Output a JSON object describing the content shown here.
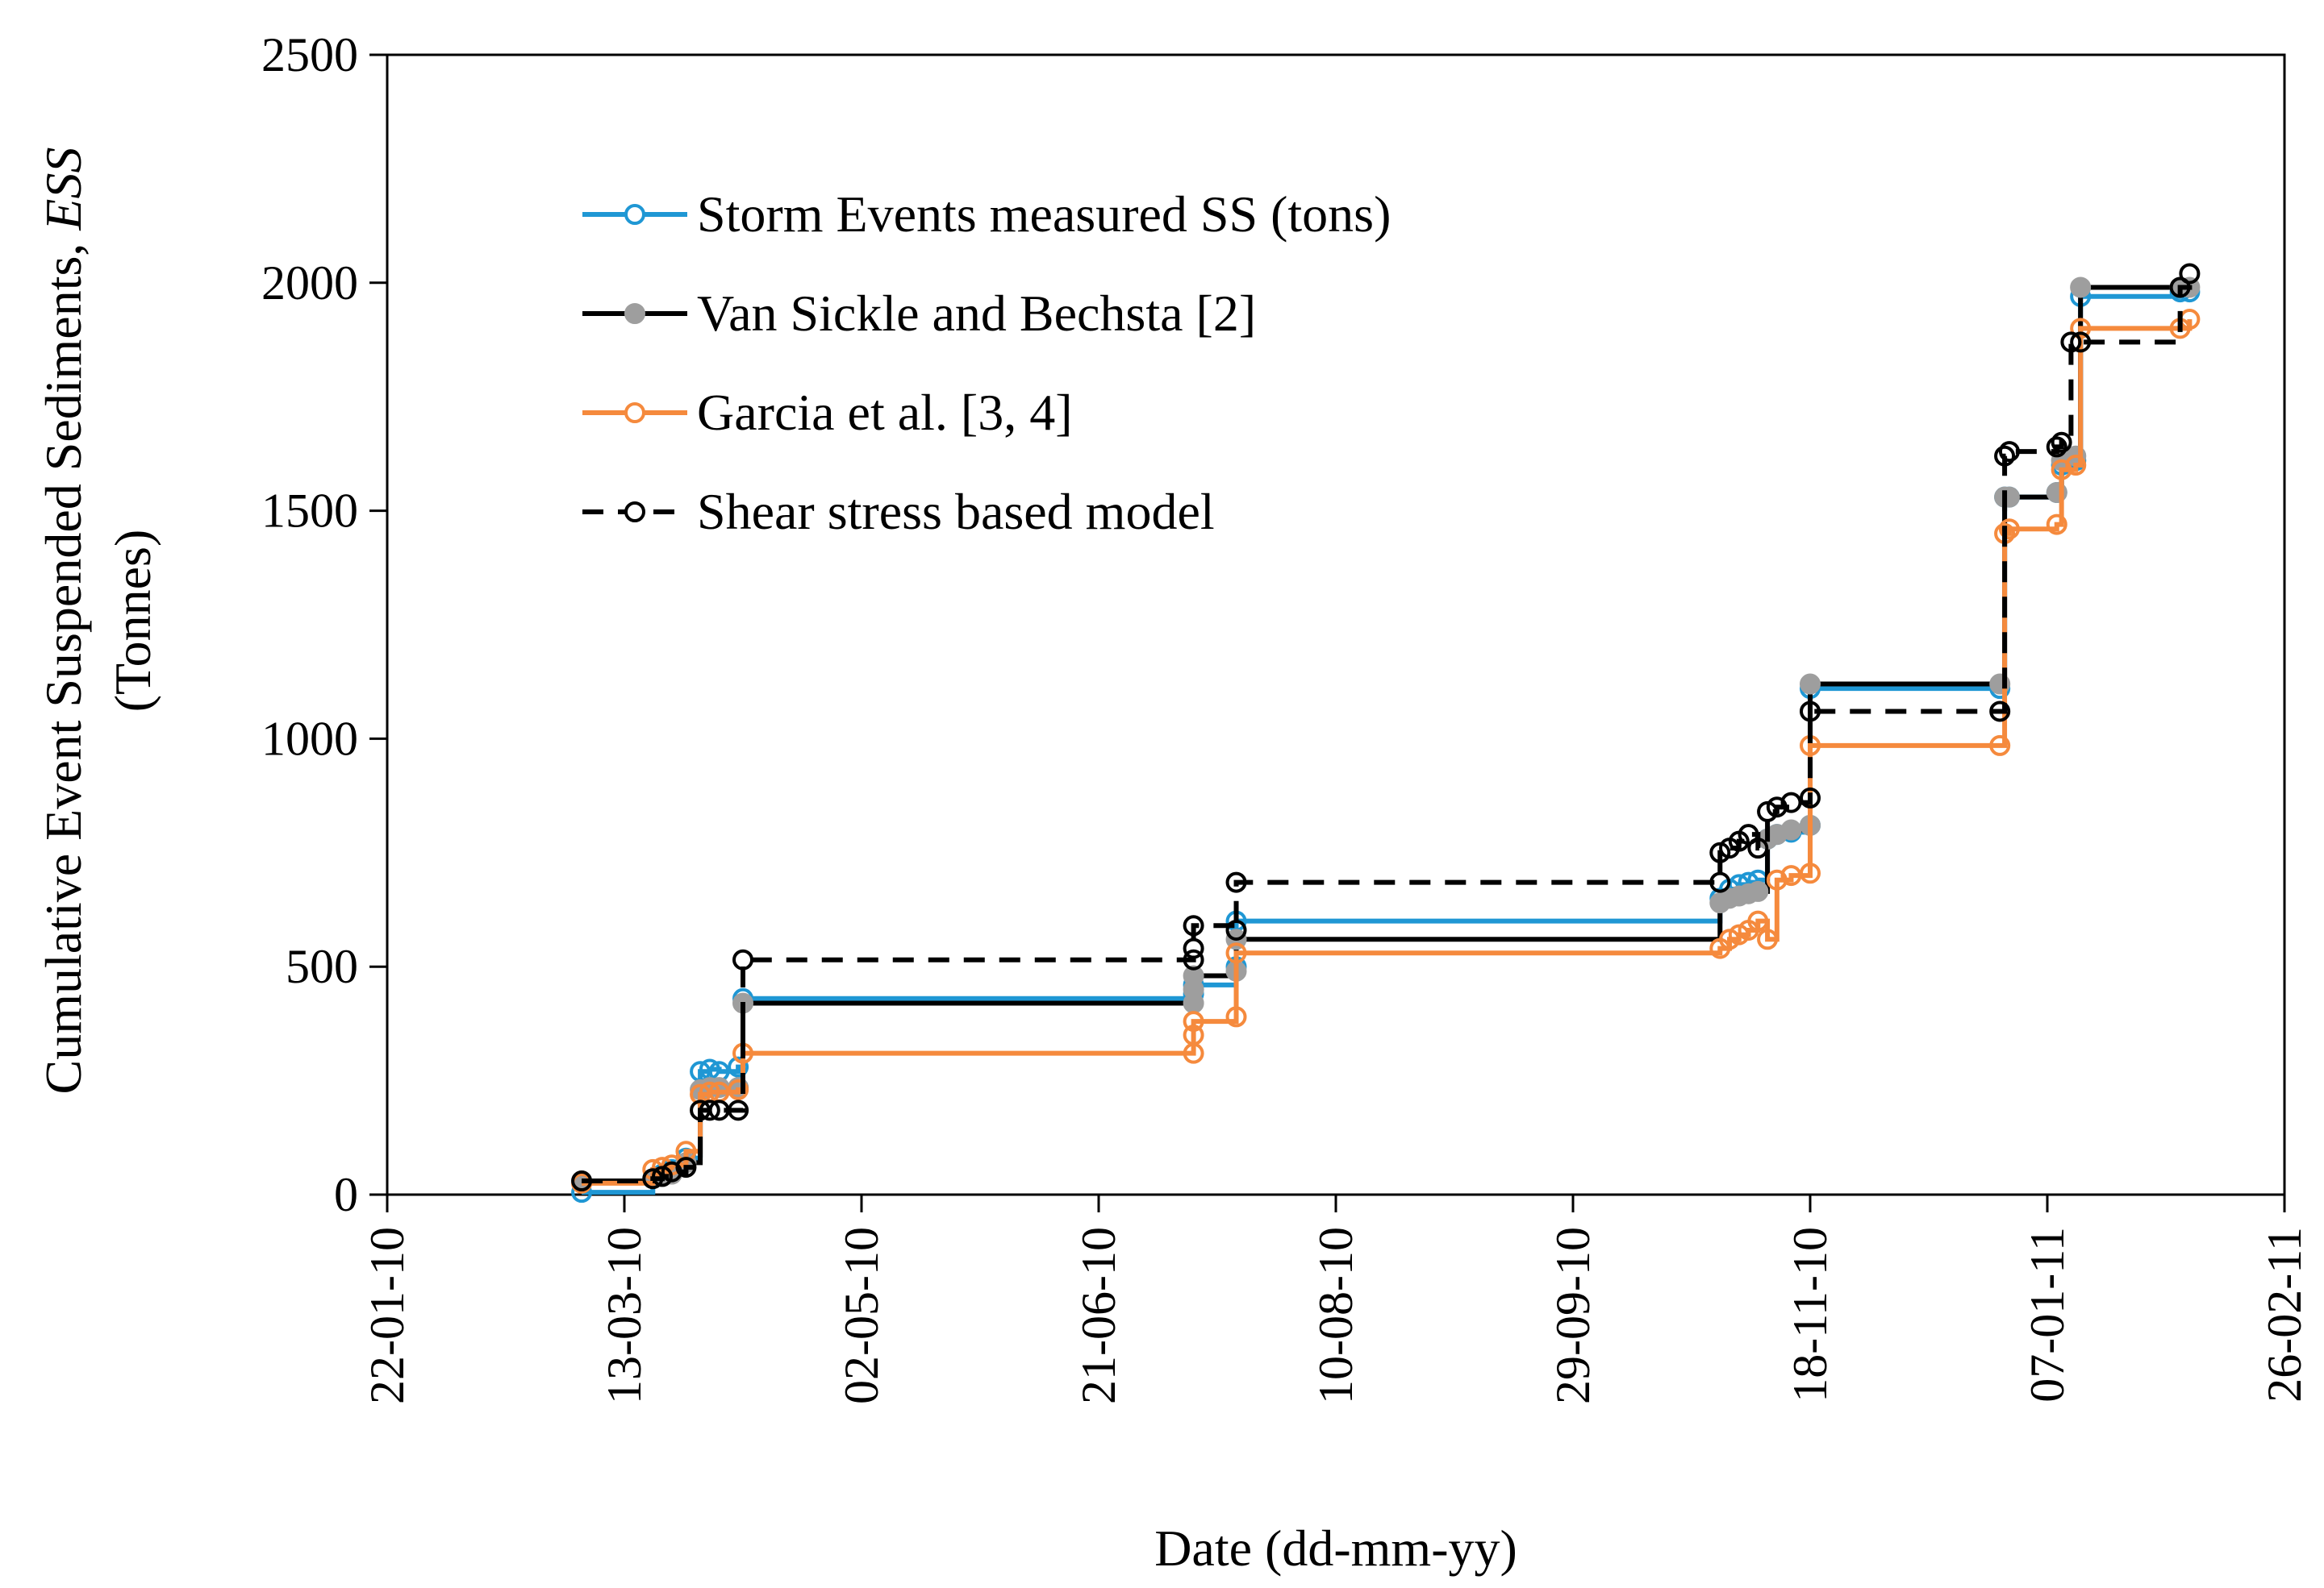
{
  "chart_data": {
    "type": "line",
    "step": true,
    "xlabel": "Date (dd-mm-yy)",
    "ylabel_prefix": "Cumulative Event Suspended Sediments, ",
    "ylabel_var": "ESS",
    "ylabel_unit": "(Tonnes)",
    "x_range_days": [
      0,
      400
    ],
    "ylim": [
      0,
      2500
    ],
    "y_ticks": [
      0,
      500,
      1000,
      1500,
      2000,
      2500
    ],
    "x_ticks": [
      {
        "day": 0,
        "label": "22-01-10"
      },
      {
        "day": 50,
        "label": "13-03-10"
      },
      {
        "day": 100,
        "label": "02-05-10"
      },
      {
        "day": 150,
        "label": "21-06-10"
      },
      {
        "day": 200,
        "label": "10-08-10"
      },
      {
        "day": 250,
        "label": "29-09-10"
      },
      {
        "day": 300,
        "label": "18-11-10"
      },
      {
        "day": 350,
        "label": "07-01-11"
      },
      {
        "day": 400,
        "label": "26-02-11"
      }
    ],
    "legend_position": "top-left",
    "series": [
      {
        "name": "Storm Events measured SS (tons)",
        "color": "#1f97d4",
        "line_style": "solid",
        "marker": "open-circle",
        "points": [
          [
            41,
            5
          ],
          [
            56,
            35
          ],
          [
            58,
            45
          ],
          [
            60,
            55
          ],
          [
            63,
            80
          ],
          [
            66,
            270
          ],
          [
            68,
            275
          ],
          [
            70,
            270
          ],
          [
            74,
            280
          ],
          [
            75,
            430
          ],
          [
            170,
            440
          ],
          [
            170,
            460
          ],
          [
            179,
            500
          ],
          [
            179,
            600
          ],
          [
            281,
            650
          ],
          [
            283,
            670
          ],
          [
            285,
            680
          ],
          [
            287,
            685
          ],
          [
            289,
            690
          ],
          [
            291,
            780
          ],
          [
            293,
            790
          ],
          [
            296,
            795
          ],
          [
            300,
            810
          ],
          [
            300,
            1110
          ],
          [
            340,
            1110
          ],
          [
            341,
            1530
          ],
          [
            342,
            1530
          ],
          [
            352,
            1540
          ],
          [
            353,
            1600
          ],
          [
            356,
            1610
          ],
          [
            357,
            1970
          ],
          [
            378,
            1980
          ],
          [
            380,
            1980
          ]
        ]
      },
      {
        "name": "Van Sickle and Bechsta [2]",
        "color": "#000000",
        "marker_color": "#9e9e9e",
        "line_style": "solid",
        "marker": "filled-circle",
        "points": [
          [
            41,
            30
          ],
          [
            56,
            35
          ],
          [
            58,
            40
          ],
          [
            60,
            45
          ],
          [
            63,
            70
          ],
          [
            66,
            230
          ],
          [
            68,
            235
          ],
          [
            70,
            235
          ],
          [
            74,
            235
          ],
          [
            75,
            420
          ],
          [
            170,
            420
          ],
          [
            170,
            450
          ],
          [
            170,
            480
          ],
          [
            179,
            490
          ],
          [
            179,
            560
          ],
          [
            281,
            640
          ],
          [
            283,
            650
          ],
          [
            285,
            655
          ],
          [
            287,
            660
          ],
          [
            289,
            665
          ],
          [
            291,
            780
          ],
          [
            293,
            790
          ],
          [
            296,
            800
          ],
          [
            300,
            810
          ],
          [
            300,
            1120
          ],
          [
            340,
            1120
          ],
          [
            341,
            1530
          ],
          [
            342,
            1530
          ],
          [
            352,
            1540
          ],
          [
            353,
            1610
          ],
          [
            356,
            1620
          ],
          [
            357,
            1990
          ],
          [
            378,
            1990
          ],
          [
            380,
            1990
          ]
        ]
      },
      {
        "name": "Garcia et al. [3, 4]",
        "color": "#f58a3d",
        "line_style": "solid",
        "marker": "open-circle",
        "points": [
          [
            41,
            25
          ],
          [
            56,
            55
          ],
          [
            58,
            60
          ],
          [
            60,
            65
          ],
          [
            63,
            95
          ],
          [
            66,
            220
          ],
          [
            68,
            225
          ],
          [
            70,
            225
          ],
          [
            74,
            230
          ],
          [
            75,
            310
          ],
          [
            170,
            310
          ],
          [
            170,
            350
          ],
          [
            170,
            380
          ],
          [
            179,
            390
          ],
          [
            179,
            530
          ],
          [
            281,
            540
          ],
          [
            283,
            560
          ],
          [
            285,
            570
          ],
          [
            287,
            580
          ],
          [
            289,
            600
          ],
          [
            291,
            560
          ],
          [
            293,
            690
          ],
          [
            296,
            700
          ],
          [
            300,
            705
          ],
          [
            300,
            985
          ],
          [
            340,
            985
          ],
          [
            341,
            1450
          ],
          [
            342,
            1460
          ],
          [
            352,
            1470
          ],
          [
            353,
            1590
          ],
          [
            356,
            1600
          ],
          [
            357,
            1900
          ],
          [
            378,
            1900
          ],
          [
            380,
            1920
          ]
        ]
      },
      {
        "name": "Shear stress based model",
        "color": "#000000",
        "line_style": "dashed",
        "marker": "open-circle",
        "points": [
          [
            41,
            30
          ],
          [
            56,
            35
          ],
          [
            58,
            40
          ],
          [
            60,
            50
          ],
          [
            63,
            60
          ],
          [
            66,
            185
          ],
          [
            68,
            185
          ],
          [
            70,
            185
          ],
          [
            74,
            185
          ],
          [
            75,
            515
          ],
          [
            170,
            515
          ],
          [
            170,
            540
          ],
          [
            170,
            590
          ],
          [
            179,
            580
          ],
          [
            179,
            685
          ],
          [
            281,
            685
          ],
          [
            281,
            750
          ],
          [
            283,
            760
          ],
          [
            285,
            775
          ],
          [
            287,
            790
          ],
          [
            289,
            760
          ],
          [
            291,
            840
          ],
          [
            293,
            850
          ],
          [
            296,
            860
          ],
          [
            300,
            870
          ],
          [
            300,
            1060
          ],
          [
            340,
            1060
          ],
          [
            341,
            1620
          ],
          [
            342,
            1630
          ],
          [
            352,
            1640
          ],
          [
            353,
            1650
          ],
          [
            355,
            1870
          ],
          [
            357,
            1870
          ],
          [
            378,
            1990
          ],
          [
            380,
            2020
          ]
        ]
      }
    ]
  }
}
